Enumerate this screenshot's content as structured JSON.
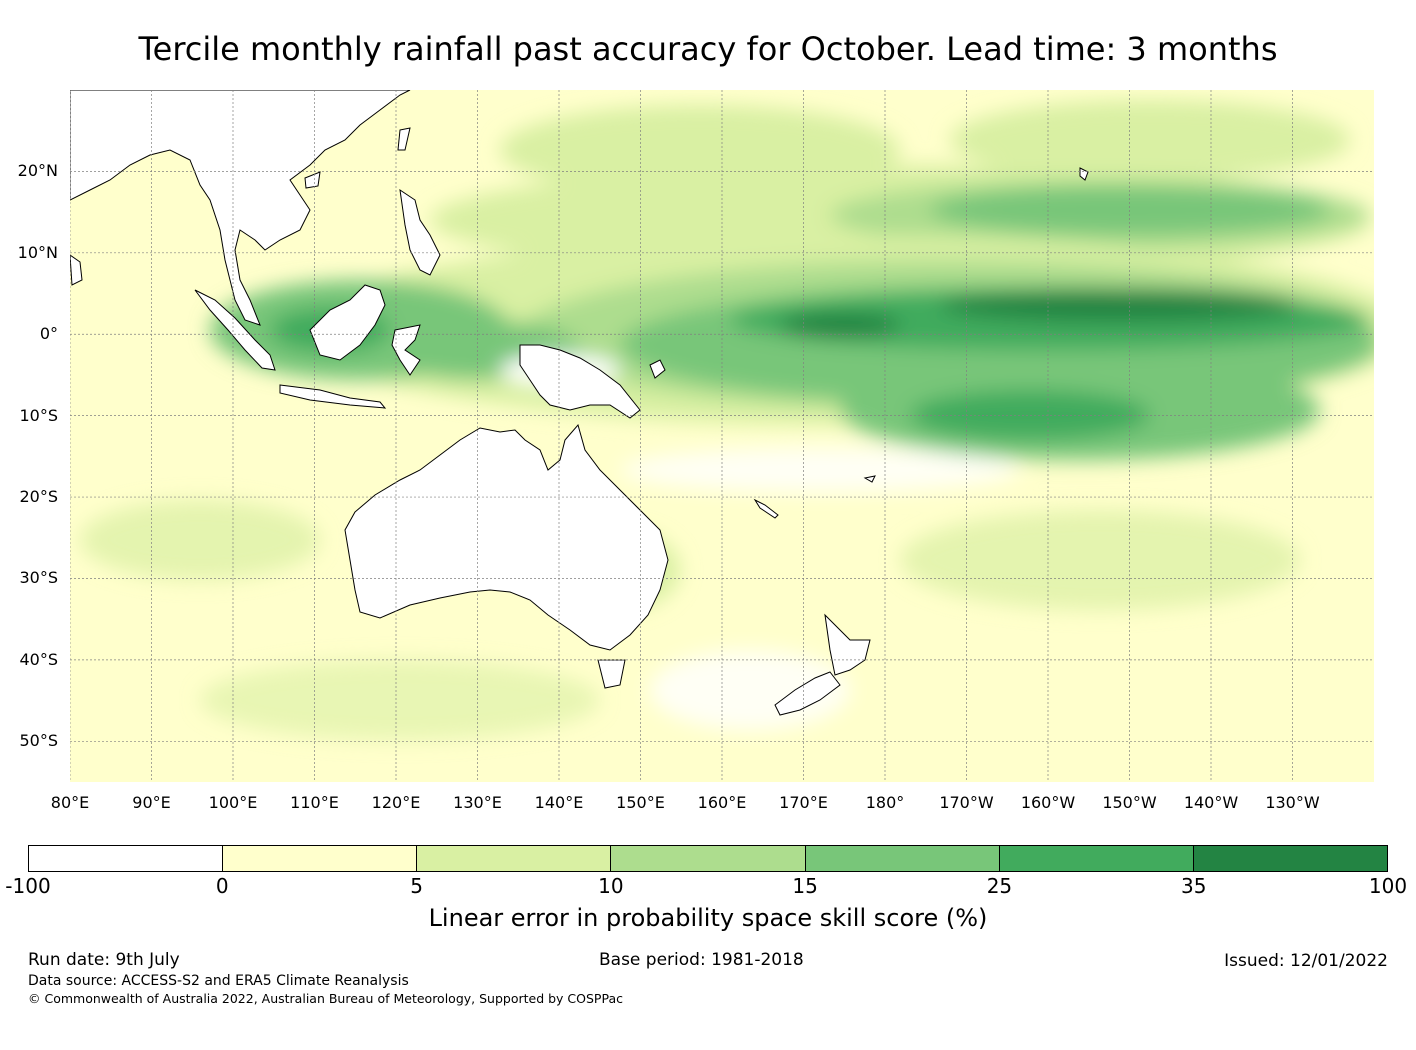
{
  "title": "Tercile monthly rainfall past accuracy for October. Lead time: 3 months",
  "map": {
    "lat_labels": [
      "20°N",
      "10°N",
      "0°",
      "10°S",
      "20°S",
      "30°S",
      "40°S",
      "50°S"
    ],
    "lon_labels": [
      "80°E",
      "90°E",
      "100°E",
      "110°E",
      "120°E",
      "130°E",
      "140°E",
      "150°E",
      "160°E",
      "170°E",
      "180°",
      "170°W",
      "160°W",
      "150°W",
      "140°W",
      "130°W"
    ],
    "lon_range": [
      80,
      240
    ],
    "lat_range": [
      -55,
      30
    ],
    "ocean_color": "#ffffcc",
    "land_color": "#ffffff",
    "coastline_color": "#000000",
    "gridline_color": "#808080"
  },
  "colorbar": {
    "ticks": [
      "-100",
      "0",
      "5",
      "10",
      "15",
      "25",
      "35",
      "100"
    ],
    "colors": [
      "#ffffff",
      "#ffffcc",
      "#d9f0a3",
      "#addd8e",
      "#78c679",
      "#41ab5d",
      "#238443"
    ],
    "label": "Linear error in probability space skill score (%)"
  },
  "footer": {
    "run_date": "Run date: 9th July",
    "base_period": "Base period: 1981-2018",
    "issued": "Issued: 12/01/2022",
    "data_source": "Data source: ACCESS-S2 and ERA5 Climate Reanalysis",
    "copyright": "© Commonwealth of Australia 2022, Australian Bureau of Meteorology, Supported by COSPPac"
  }
}
